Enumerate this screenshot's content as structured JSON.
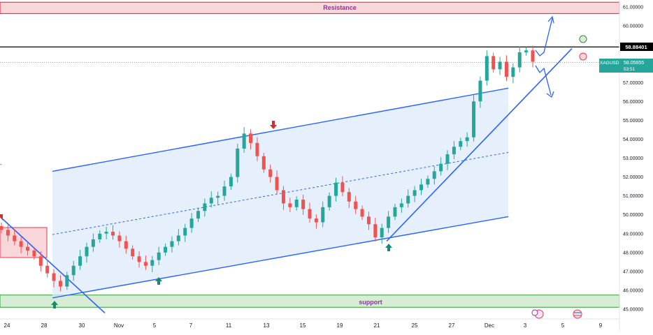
{
  "chart_data": {
    "type": "candlestick",
    "symbol": "XAGUSD",
    "y_axis": {
      "ylim": [
        44.8,
        61.4
      ],
      "ticks": [
        "61.00000",
        "60.00000",
        "59.00000",
        "58.00000",
        "57.00000",
        "56.00000",
        "55.00000",
        "54.00000",
        "53.00000",
        "52.00000",
        "51.00000",
        "50.00000",
        "49.00000",
        "48.00000",
        "47.00000",
        "46.00000",
        "45.00000"
      ]
    },
    "x_axis": {
      "tick_labels": [
        "24",
        "28",
        "30",
        "Nov",
        "5",
        "7",
        "11",
        "13",
        "15",
        "19",
        "21",
        "25",
        "27",
        "Dec",
        "3",
        "5",
        "9"
      ]
    },
    "price_label": "58.88401",
    "last_price": {
      "symbol": "XAGUSD",
      "value": "58.05655",
      "countdown": "53:51"
    },
    "zones": {
      "resistance": {
        "label": "Resistance",
        "from": 60.65,
        "to": 61.25,
        "fill": "#f8d7da",
        "border": "#e53950",
        "text_color": "#9c27b0"
      },
      "support": {
        "label": "support",
        "from": 45.1,
        "to": 45.75,
        "fill": "#d6ecd4",
        "border": "#4caf50",
        "text_color": "#9c27b0"
      }
    },
    "colors": {
      "up": "#26a69a",
      "down": "#ef5350",
      "trendline": "#2962ff",
      "channel_fill": "#dce9fb",
      "arrow_up": "#1b8a6b",
      "arrow_down": "#d32f2f",
      "horizontal_line": "#000000"
    },
    "series": [
      {
        "name": "XAGUSD",
        "close": [
          49.2,
          48.9,
          48.6,
          48.3,
          48.1,
          47.8,
          47.3,
          46.9,
          46.5,
          46.2,
          46.8,
          47.3,
          47.8,
          48.3,
          48.7,
          49.0,
          49.1,
          48.9,
          48.6,
          48.2,
          47.8,
          47.5,
          47.3,
          47.6,
          48.0,
          48.3,
          48.6,
          48.9,
          49.3,
          49.8,
          50.2,
          50.6,
          50.9,
          51.0,
          51.5,
          52.0,
          53.5,
          54.3,
          53.8,
          53.1,
          52.4,
          52.0,
          51.3,
          50.6,
          50.4,
          50.8,
          50.3,
          49.8,
          49.6,
          50.4,
          51.0,
          51.7,
          51.2,
          50.7,
          50.3,
          49.9,
          49.5,
          48.8,
          49.3,
          49.9,
          50.4,
          50.6,
          51.0,
          51.3,
          51.6,
          51.9,
          52.3,
          52.7,
          53.2,
          53.6,
          53.9,
          54.1,
          56.0,
          57.1,
          58.4,
          57.7,
          58.1,
          57.3,
          57.8,
          58.6,
          58.7,
          58.1
        ]
      }
    ],
    "channel": {
      "upper": [
        52.3,
        56.7
      ],
      "lower": [
        45.6,
        49.9
      ],
      "mid": [
        48.95,
        53.3
      ]
    },
    "rising_trendline": [
      48.6,
      58.8
    ],
    "falling_trendline": [
      49.9,
      44.8
    ]
  }
}
